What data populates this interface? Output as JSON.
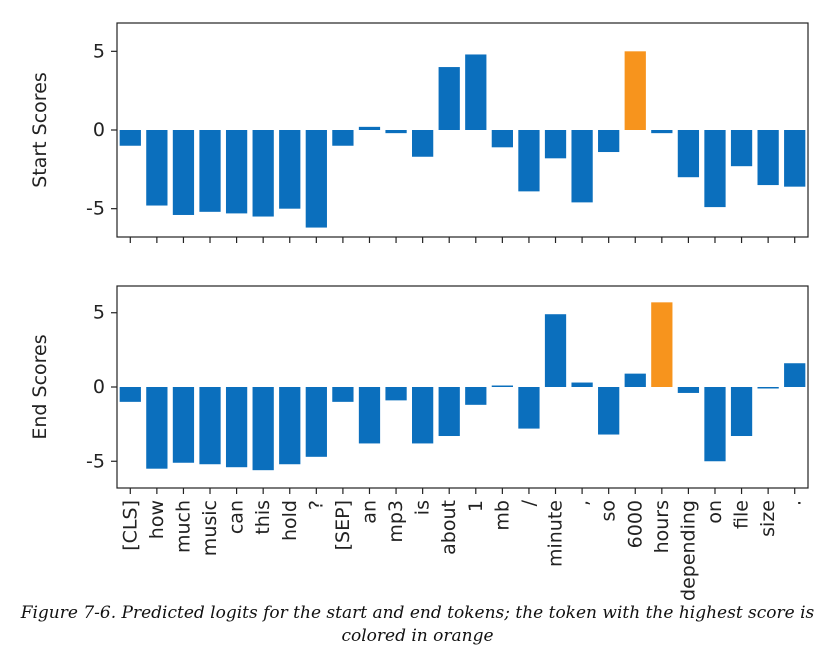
{
  "caption": "Figure 7-6. Predicted logits for the start and end tokens; the token with the highest score is colored in orange",
  "chart_data": {
    "type": "bar",
    "categories": [
      "[CLS]",
      "how",
      "much",
      "music",
      "can",
      "this",
      "hold",
      "?",
      "[SEP]",
      "an",
      "mp3",
      "is",
      "about",
      "1",
      "mb",
      "/",
      "minute",
      ",",
      "so",
      "6000",
      "hours",
      "depending",
      "on",
      "file",
      "size",
      "."
    ],
    "ylim": [
      -6.8,
      6.8
    ],
    "yticks": [
      -5,
      0,
      5
    ],
    "ytick_labels": [
      "-5",
      "0",
      "5"
    ],
    "colors": {
      "bar": "#0b6fbd",
      "highlight": "#f7941d"
    },
    "grid": false,
    "series": [
      {
        "ylabel": "Start Scores",
        "highlight_index": 19,
        "values": [
          -1.0,
          -4.8,
          -5.4,
          -5.2,
          -5.3,
          -5.5,
          -5.0,
          -6.2,
          -1.0,
          0.2,
          -0.2,
          -1.7,
          4.0,
          4.8,
          -1.1,
          -3.9,
          -1.8,
          -4.6,
          -1.4,
          5.0,
          -0.2,
          -3.0,
          -4.9,
          -2.3,
          -3.5,
          -3.6
        ]
      },
      {
        "ylabel": "End Scores",
        "highlight_index": 20,
        "values": [
          -1.0,
          -5.5,
          -5.1,
          -5.2,
          -5.4,
          -5.6,
          -5.2,
          -4.7,
          -1.0,
          -3.8,
          -0.9,
          -3.8,
          -3.3,
          -1.2,
          0.1,
          -2.8,
          4.9,
          0.3,
          -3.2,
          0.9,
          5.7,
          -0.4,
          -5.0,
          -3.3,
          -0.1,
          1.6
        ]
      }
    ]
  }
}
